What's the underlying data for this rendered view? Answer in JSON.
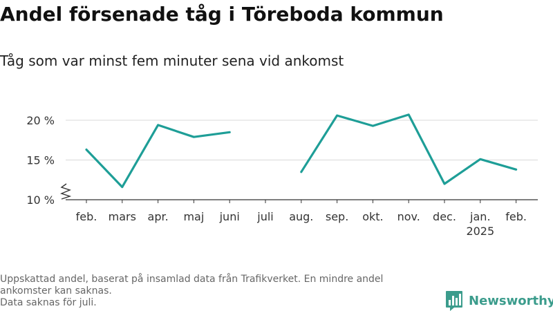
{
  "header": {
    "title": "Andel försenade tåg i Töreboda kommun",
    "subtitle": "Tåg som var minst fem minuter sena vid ankomst"
  },
  "footnote": {
    "line1": "Uppskattad andel, baserat på insamlad data från Trafikverket. En mindre andel ankomster kan saknas.",
    "line2": "Data saknas för juli."
  },
  "brand": {
    "name": "Newsworthy",
    "logo_icon": "bar-chart-logo-icon",
    "color": "#3b9c8c"
  },
  "chart_data": {
    "type": "line",
    "title": "Andel försenade tåg i Töreboda kommun",
    "subtitle": "Tåg som var minst fem minuter sena vid ankomst",
    "xlabel": "",
    "ylabel": "",
    "categories": [
      "feb.",
      "mars",
      "apr.",
      "maj",
      "juni",
      "juli",
      "aug.",
      "sep.",
      "okt.",
      "nov.",
      "dec.",
      "jan.",
      "feb."
    ],
    "category_sublabels": [
      "",
      "",
      "",
      "",
      "",
      "",
      "",
      "",
      "",
      "",
      "",
      "2025",
      ""
    ],
    "series": [
      {
        "values": [
          16.3,
          11.6,
          19.4,
          17.9,
          18.5,
          null,
          13.5,
          20.6,
          19.3,
          20.7,
          12.0,
          15.1,
          13.8
        ],
        "color": "#1e9e97"
      }
    ],
    "y_ticks": [
      10,
      15,
      20
    ],
    "y_tick_labels": [
      "10 %",
      "15 %",
      "20 %"
    ],
    "ylim": [
      10,
      21.5
    ],
    "y_axis_break": true,
    "grid": true,
    "legend": "none"
  }
}
